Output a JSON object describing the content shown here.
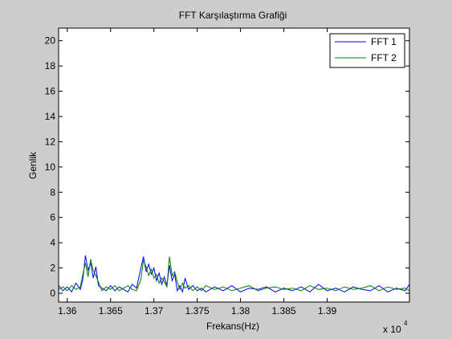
{
  "window": {
    "background": "#cdcdcd"
  },
  "chart_data": {
    "type": "line",
    "title": "FFT Karşılaştırma Grafiği",
    "xlabel": "Frekans(Hz)",
    "ylabel": "Genlik",
    "x_multiplier_label": "x 10",
    "x_multiplier_exponent": "4",
    "xlim": [
      13590,
      13995
    ],
    "ylim": [
      -0.7,
      21
    ],
    "xticks": [
      13600,
      13650,
      13700,
      13750,
      13800,
      13850,
      13900
    ],
    "xtick_labels": [
      "1.36",
      "1.365",
      "1.37",
      "1.375",
      "1.38",
      "1.385",
      "1.39"
    ],
    "yticks": [
      0,
      2,
      4,
      6,
      8,
      10,
      12,
      14,
      16,
      18,
      20
    ],
    "ytick_labels": [
      "0",
      "2",
      "4",
      "6",
      "8",
      "10",
      "12",
      "14",
      "16",
      "18",
      "20"
    ],
    "grid": false,
    "legend_position": "top-right",
    "x": [
      13590,
      13595,
      13600,
      13605,
      13610,
      13615,
      13618,
      13621,
      13624,
      13627,
      13630,
      13633,
      13636,
      13640,
      13645,
      13650,
      13655,
      13660,
      13665,
      13670,
      13675,
      13680,
      13685,
      13688,
      13691,
      13694,
      13697,
      13700,
      13703,
      13706,
      13709,
      13712,
      13715,
      13718,
      13721,
      13724,
      13727,
      13730,
      13733,
      13736,
      13740,
      13745,
      13750,
      13755,
      13760,
      13770,
      13780,
      13790,
      13800,
      13810,
      13820,
      13830,
      13840,
      13850,
      13860,
      13870,
      13880,
      13890,
      13900,
      13910,
      13920,
      13930,
      13940,
      13950,
      13960,
      13970,
      13980,
      13990,
      13995
    ],
    "series": [
      {
        "name": "FFT 1",
        "color": "#0000ff",
        "values": [
          0.6,
          0.2,
          0.5,
          0.1,
          0.8,
          0.3,
          1.1,
          3.0,
          1.8,
          2.4,
          1.2,
          2.1,
          0.6,
          0.4,
          0.2,
          0.6,
          0.2,
          0.5,
          0.3,
          0.1,
          0.7,
          0.4,
          2.0,
          2.9,
          1.7,
          2.3,
          1.5,
          2.0,
          1.0,
          1.6,
          0.7,
          1.3,
          0.6,
          2.2,
          1.0,
          1.5,
          0.2,
          0.6,
          0.1,
          1.2,
          0.3,
          0.6,
          0.2,
          0.4,
          0.1,
          0.5,
          0.2,
          0.6,
          0.1,
          0.4,
          0.3,
          0.5,
          0.1,
          0.4,
          0.2,
          0.5,
          0.1,
          0.7,
          0.2,
          0.4,
          0.1,
          0.5,
          0.3,
          0.2,
          0.6,
          0.1,
          0.4,
          0.2,
          0.7
        ]
      },
      {
        "name": "FFT 2",
        "color": "#008000",
        "values": [
          0.3,
          0.5,
          0.2,
          0.6,
          0.3,
          0.5,
          1.5,
          2.4,
          1.3,
          2.7,
          1.8,
          1.4,
          0.9,
          0.2,
          0.5,
          0.3,
          0.6,
          0.2,
          0.4,
          0.6,
          0.3,
          0.2,
          1.1,
          2.6,
          2.1,
          1.4,
          1.9,
          1.2,
          1.5,
          0.8,
          1.2,
          0.9,
          0.5,
          2.9,
          1.4,
          1.7,
          0.9,
          0.3,
          0.8,
          0.4,
          0.6,
          0.2,
          0.5,
          0.2,
          0.6,
          0.3,
          0.5,
          0.2,
          0.4,
          0.6,
          0.2,
          0.4,
          0.5,
          0.3,
          0.4,
          0.2,
          0.6,
          0.3,
          0.4,
          0.2,
          0.5,
          0.3,
          0.4,
          0.6,
          0.2,
          0.5,
          0.3,
          0.4,
          0.2
        ]
      }
    ]
  }
}
